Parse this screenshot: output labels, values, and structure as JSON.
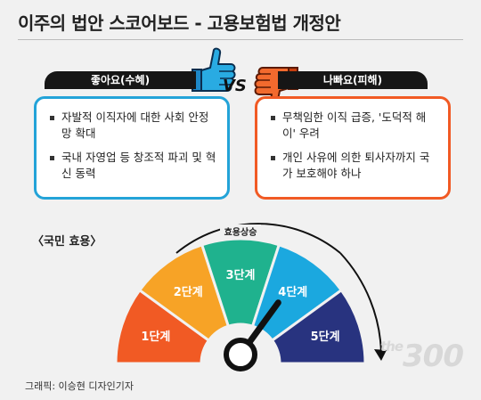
{
  "title": "이주의 법안 스코어보드 - 고용보험법 개정안",
  "pros": {
    "label": "좋아요(수혜)",
    "color": "#23a3d8",
    "items": [
      "자발적 이직자에 대한 사회 안정망 확대",
      "국내 자영업 등 창조적 파괴 및 혁신 동력"
    ]
  },
  "vs": "VS",
  "cons": {
    "label": "나빠요(피해)",
    "color": "#f15a24",
    "items": [
      "무책임한 이직 급증, '도덕적 해이' 우려",
      "개인 사유에 의한 퇴사자까지 국가 보호해야 하나"
    ]
  },
  "section_label": "〈국민 효용〉",
  "gauge": {
    "increase_label": "효용상승",
    "needle_level": 4,
    "segments": [
      {
        "label": "1단계",
        "color": "#f15a24"
      },
      {
        "label": "2단계",
        "color": "#f7a326"
      },
      {
        "label": "3단계",
        "color": "#1fb28e"
      },
      {
        "label": "4단계",
        "color": "#1ba8df"
      },
      {
        "label": "5단계",
        "color": "#28337f"
      }
    ]
  },
  "credit": "그래픽: 이승현 디자인기자",
  "watermark": {
    "prefix": "the",
    "number": "300"
  }
}
